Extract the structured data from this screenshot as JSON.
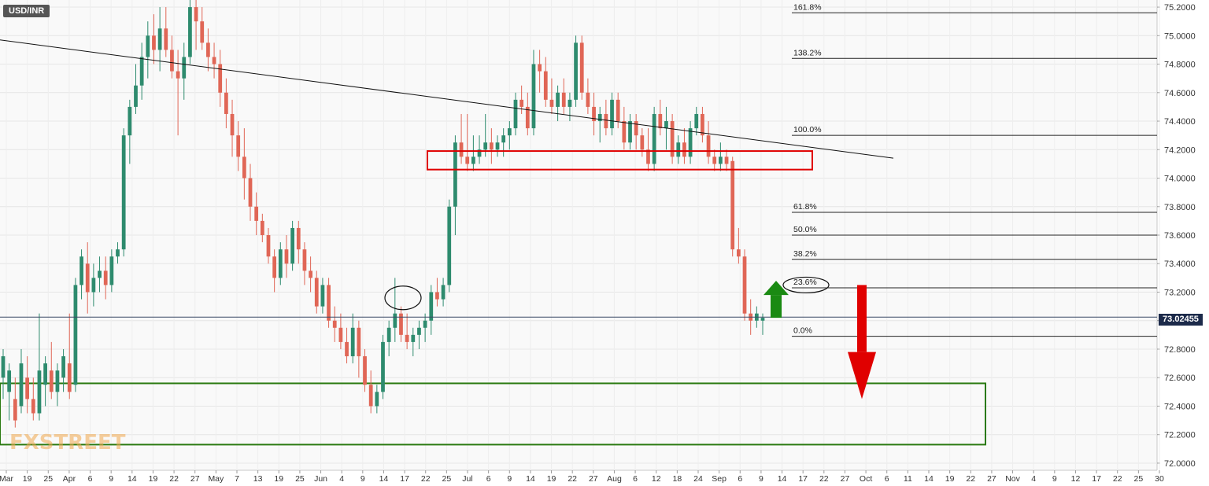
{
  "symbol": "USD/INR",
  "logo_text": "FXSTREET",
  "current_price_label": "73.02455",
  "colors": {
    "bull": "#2e8b6e",
    "bear": "#e06656",
    "fib_line": "#222222",
    "trend_line": "#111111",
    "resistance_box": "#e00000",
    "support_box": "#2a7a10",
    "arrow_up": "#1a8a12",
    "arrow_down": "#e00000",
    "price_line": "#3a4a66"
  },
  "chart_data": {
    "type": "candlestick",
    "y_axis": {
      "ylim": [
        71.95,
        75.25
      ],
      "ticks": [
        "75.2000",
        "75.0000",
        "74.8000",
        "74.6000",
        "74.4000",
        "74.2000",
        "74.0000",
        "73.8000",
        "73.6000",
        "73.4000",
        "73.2000",
        "73.0000",
        "72.8000",
        "72.6000",
        "72.4000",
        "72.2000",
        "72.0000"
      ]
    },
    "x_axis": {
      "ticks": [
        "Mar",
        "19",
        "25",
        "Apr",
        "6",
        "9",
        "14",
        "19",
        "22",
        "27",
        "May",
        "7",
        "13",
        "19",
        "25",
        "Jun",
        "4",
        "9",
        "14",
        "17",
        "22",
        "25",
        "Jul",
        "6",
        "9",
        "14",
        "19",
        "22",
        "27",
        "Aug",
        "6",
        "12",
        "18",
        "24",
        "Sep",
        "6",
        "9",
        "14",
        "17",
        "22",
        "27",
        "Oct",
        "6",
        "11",
        "14",
        "19",
        "22",
        "27",
        "Nov",
        "4",
        "9",
        "12",
        "17",
        "22",
        "25",
        "30"
      ]
    },
    "fibonacci": [
      {
        "label": "161.8%",
        "value": 75.16
      },
      {
        "label": "138.2%",
        "value": 74.84
      },
      {
        "label": "100.0%",
        "value": 74.3
      },
      {
        "label": "61.8%",
        "value": 73.76
      },
      {
        "label": "50.0%",
        "value": 73.6
      },
      {
        "label": "38.2%",
        "value": 73.43
      },
      {
        "label": "23.6%",
        "value": 73.23
      },
      {
        "label": "0.0%",
        "value": 72.89
      }
    ],
    "current_price": 73.02455,
    "candles": [
      {
        "o": 72.6,
        "h": 72.8,
        "l": 72.45,
        "c": 72.75
      },
      {
        "o": 72.5,
        "h": 72.7,
        "l": 72.3,
        "c": 72.65
      },
      {
        "o": 72.45,
        "h": 72.6,
        "l": 72.25,
        "c": 72.3
      },
      {
        "o": 72.4,
        "h": 72.8,
        "l": 72.35,
        "c": 72.7
      },
      {
        "o": 72.6,
        "h": 72.75,
        "l": 72.35,
        "c": 72.45
      },
      {
        "o": 72.45,
        "h": 72.6,
        "l": 72.3,
        "c": 72.35
      },
      {
        "o": 72.35,
        "h": 73.05,
        "l": 72.3,
        "c": 72.65
      },
      {
        "o": 72.55,
        "h": 72.75,
        "l": 72.4,
        "c": 72.7
      },
      {
        "o": 72.65,
        "h": 72.85,
        "l": 72.45,
        "c": 72.5
      },
      {
        "o": 72.5,
        "h": 72.7,
        "l": 72.4,
        "c": 72.65
      },
      {
        "o": 72.6,
        "h": 72.8,
        "l": 72.5,
        "c": 72.75
      },
      {
        "o": 72.7,
        "h": 73.05,
        "l": 72.45,
        "c": 72.5
      },
      {
        "o": 72.55,
        "h": 73.3,
        "l": 72.5,
        "c": 73.25
      },
      {
        "o": 73.25,
        "h": 73.5,
        "l": 73.15,
        "c": 73.45
      },
      {
        "o": 73.4,
        "h": 73.55,
        "l": 73.05,
        "c": 73.2
      },
      {
        "o": 73.2,
        "h": 73.4,
        "l": 73.1,
        "c": 73.3
      },
      {
        "o": 73.3,
        "h": 73.45,
        "l": 73.2,
        "c": 73.35
      },
      {
        "o": 73.35,
        "h": 73.45,
        "l": 73.15,
        "c": 73.25
      },
      {
        "o": 73.25,
        "h": 73.5,
        "l": 73.2,
        "c": 73.45
      },
      {
        "o": 73.45,
        "h": 73.55,
        "l": 73.4,
        "c": 73.5
      },
      {
        "o": 73.5,
        "h": 74.35,
        "l": 73.45,
        "c": 74.3
      },
      {
        "o": 74.3,
        "h": 74.55,
        "l": 74.1,
        "c": 74.5
      },
      {
        "o": 74.5,
        "h": 74.8,
        "l": 74.45,
        "c": 74.65
      },
      {
        "o": 74.65,
        "h": 74.95,
        "l": 74.55,
        "c": 74.85
      },
      {
        "o": 74.85,
        "h": 75.1,
        "l": 74.7,
        "c": 75.0
      },
      {
        "o": 75.0,
        "h": 75.15,
        "l": 74.8,
        "c": 74.9
      },
      {
        "o": 74.9,
        "h": 75.2,
        "l": 74.75,
        "c": 75.05
      },
      {
        "o": 75.05,
        "h": 75.2,
        "l": 74.85,
        "c": 74.9
      },
      {
        "o": 74.9,
        "h": 75.0,
        "l": 74.7,
        "c": 74.75
      },
      {
        "o": 74.75,
        "h": 74.9,
        "l": 74.3,
        "c": 74.7
      },
      {
        "o": 74.7,
        "h": 74.95,
        "l": 74.55,
        "c": 74.85
      },
      {
        "o": 74.85,
        "h": 75.25,
        "l": 74.8,
        "c": 75.2
      },
      {
        "o": 75.2,
        "h": 75.25,
        "l": 74.9,
        "c": 75.1
      },
      {
        "o": 75.1,
        "h": 75.2,
        "l": 74.9,
        "c": 74.95
      },
      {
        "o": 74.95,
        "h": 75.05,
        "l": 74.75,
        "c": 74.85
      },
      {
        "o": 74.85,
        "h": 74.95,
        "l": 74.7,
        "c": 74.8
      },
      {
        "o": 74.8,
        "h": 74.9,
        "l": 74.5,
        "c": 74.6
      },
      {
        "o": 74.6,
        "h": 74.7,
        "l": 74.35,
        "c": 74.45
      },
      {
        "o": 74.45,
        "h": 74.55,
        "l": 74.15,
        "c": 74.3
      },
      {
        "o": 74.3,
        "h": 74.4,
        "l": 74.05,
        "c": 74.15
      },
      {
        "o": 74.15,
        "h": 74.35,
        "l": 73.85,
        "c": 74.0
      },
      {
        "o": 74.0,
        "h": 74.1,
        "l": 73.7,
        "c": 73.8
      },
      {
        "o": 73.8,
        "h": 73.9,
        "l": 73.6,
        "c": 73.7
      },
      {
        "o": 73.7,
        "h": 73.75,
        "l": 73.55,
        "c": 73.6
      },
      {
        "o": 73.6,
        "h": 73.65,
        "l": 73.4,
        "c": 73.45
      },
      {
        "o": 73.45,
        "h": 73.5,
        "l": 73.2,
        "c": 73.3
      },
      {
        "o": 73.3,
        "h": 73.55,
        "l": 73.25,
        "c": 73.5
      },
      {
        "o": 73.5,
        "h": 73.6,
        "l": 73.3,
        "c": 73.4
      },
      {
        "o": 73.4,
        "h": 73.7,
        "l": 73.35,
        "c": 73.65
      },
      {
        "o": 73.65,
        "h": 73.7,
        "l": 73.4,
        "c": 73.5
      },
      {
        "o": 73.5,
        "h": 73.55,
        "l": 73.25,
        "c": 73.35
      },
      {
        "o": 73.35,
        "h": 73.45,
        "l": 73.2,
        "c": 73.3
      },
      {
        "o": 73.3,
        "h": 73.35,
        "l": 73.05,
        "c": 73.1
      },
      {
        "o": 73.1,
        "h": 73.3,
        "l": 73.05,
        "c": 73.25
      },
      {
        "o": 73.25,
        "h": 73.3,
        "l": 72.95,
        "c": 73.0
      },
      {
        "o": 73.0,
        "h": 73.1,
        "l": 72.85,
        "c": 72.95
      },
      {
        "o": 72.95,
        "h": 73.05,
        "l": 72.8,
        "c": 72.85
      },
      {
        "o": 72.85,
        "h": 72.95,
        "l": 72.7,
        "c": 72.75
      },
      {
        "o": 72.75,
        "h": 73.05,
        "l": 72.7,
        "c": 72.95
      },
      {
        "o": 72.95,
        "h": 73.0,
        "l": 72.6,
        "c": 72.75
      },
      {
        "o": 72.75,
        "h": 72.8,
        "l": 72.5,
        "c": 72.55
      },
      {
        "o": 72.55,
        "h": 72.65,
        "l": 72.35,
        "c": 72.4
      },
      {
        "o": 72.4,
        "h": 72.55,
        "l": 72.35,
        "c": 72.5
      },
      {
        "o": 72.5,
        "h": 72.9,
        "l": 72.45,
        "c": 72.85
      },
      {
        "o": 72.85,
        "h": 73.0,
        "l": 72.75,
        "c": 72.95
      },
      {
        "o": 72.95,
        "h": 73.3,
        "l": 72.85,
        "c": 73.05
      },
      {
        "o": 73.05,
        "h": 73.1,
        "l": 72.85,
        "c": 72.9
      },
      {
        "o": 72.9,
        "h": 73.05,
        "l": 72.8,
        "c": 72.85
      },
      {
        "o": 72.85,
        "h": 72.95,
        "l": 72.75,
        "c": 72.9
      },
      {
        "o": 72.9,
        "h": 73.0,
        "l": 72.8,
        "c": 72.95
      },
      {
        "o": 72.95,
        "h": 73.05,
        "l": 72.85,
        "c": 73.0
      },
      {
        "o": 73.0,
        "h": 73.25,
        "l": 72.9,
        "c": 73.2
      },
      {
        "o": 73.2,
        "h": 73.3,
        "l": 73.1,
        "c": 73.15
      },
      {
        "o": 73.15,
        "h": 73.3,
        "l": 73.1,
        "c": 73.25
      },
      {
        "o": 73.25,
        "h": 73.85,
        "l": 73.2,
        "c": 73.8
      },
      {
        "o": 73.8,
        "h": 74.3,
        "l": 73.6,
        "c": 74.25
      },
      {
        "o": 74.25,
        "h": 74.45,
        "l": 74.1,
        "c": 74.15
      },
      {
        "o": 74.15,
        "h": 74.45,
        "l": 74.05,
        "c": 74.1
      },
      {
        "o": 74.1,
        "h": 74.3,
        "l": 74.05,
        "c": 74.15
      },
      {
        "o": 74.15,
        "h": 74.3,
        "l": 74.1,
        "c": 74.2
      },
      {
        "o": 74.2,
        "h": 74.45,
        "l": 74.15,
        "c": 74.25
      },
      {
        "o": 74.25,
        "h": 74.35,
        "l": 74.1,
        "c": 74.2
      },
      {
        "o": 74.2,
        "h": 74.3,
        "l": 74.15,
        "c": 74.25
      },
      {
        "o": 74.25,
        "h": 74.35,
        "l": 74.15,
        "c": 74.3
      },
      {
        "o": 74.3,
        "h": 74.4,
        "l": 74.2,
        "c": 74.35
      },
      {
        "o": 74.35,
        "h": 74.6,
        "l": 74.3,
        "c": 74.55
      },
      {
        "o": 74.55,
        "h": 74.65,
        "l": 74.45,
        "c": 74.5
      },
      {
        "o": 74.5,
        "h": 74.6,
        "l": 74.3,
        "c": 74.35
      },
      {
        "o": 74.35,
        "h": 74.9,
        "l": 74.3,
        "c": 74.8
      },
      {
        "o": 74.8,
        "h": 74.9,
        "l": 74.6,
        "c": 74.75
      },
      {
        "o": 74.75,
        "h": 74.85,
        "l": 74.5,
        "c": 74.55
      },
      {
        "o": 74.55,
        "h": 74.7,
        "l": 74.45,
        "c": 74.5
      },
      {
        "o": 74.5,
        "h": 74.65,
        "l": 74.4,
        "c": 74.6
      },
      {
        "o": 74.6,
        "h": 74.7,
        "l": 74.45,
        "c": 74.5
      },
      {
        "o": 74.5,
        "h": 74.6,
        "l": 74.4,
        "c": 74.55
      },
      {
        "o": 74.55,
        "h": 75.0,
        "l": 74.5,
        "c": 74.95
      },
      {
        "o": 74.95,
        "h": 75.0,
        "l": 74.55,
        "c": 74.6
      },
      {
        "o": 74.6,
        "h": 74.7,
        "l": 74.45,
        "c": 74.5
      },
      {
        "o": 74.5,
        "h": 74.6,
        "l": 74.3,
        "c": 74.4
      },
      {
        "o": 74.4,
        "h": 74.5,
        "l": 74.25,
        "c": 74.45
      },
      {
        "o": 74.45,
        "h": 74.55,
        "l": 74.3,
        "c": 74.35
      },
      {
        "o": 74.35,
        "h": 74.6,
        "l": 74.3,
        "c": 74.55
      },
      {
        "o": 74.55,
        "h": 74.6,
        "l": 74.35,
        "c": 74.4
      },
      {
        "o": 74.4,
        "h": 74.5,
        "l": 74.2,
        "c": 74.25
      },
      {
        "o": 74.25,
        "h": 74.45,
        "l": 74.2,
        "c": 74.4
      },
      {
        "o": 74.4,
        "h": 74.45,
        "l": 74.2,
        "c": 74.3
      },
      {
        "o": 74.3,
        "h": 74.35,
        "l": 74.15,
        "c": 74.2
      },
      {
        "o": 74.2,
        "h": 74.35,
        "l": 74.05,
        "c": 74.1
      },
      {
        "o": 74.1,
        "h": 74.5,
        "l": 74.05,
        "c": 74.45
      },
      {
        "o": 74.45,
        "h": 74.55,
        "l": 74.3,
        "c": 74.35
      },
      {
        "o": 74.35,
        "h": 74.5,
        "l": 74.2,
        "c": 74.4
      },
      {
        "o": 74.4,
        "h": 74.45,
        "l": 74.1,
        "c": 74.15
      },
      {
        "o": 74.15,
        "h": 74.3,
        "l": 74.1,
        "c": 74.25
      },
      {
        "o": 74.25,
        "h": 74.35,
        "l": 74.1,
        "c": 74.15
      },
      {
        "o": 74.15,
        "h": 74.4,
        "l": 74.1,
        "c": 74.35
      },
      {
        "o": 74.35,
        "h": 74.5,
        "l": 74.3,
        "c": 74.45
      },
      {
        "o": 74.45,
        "h": 74.5,
        "l": 74.25,
        "c": 74.3
      },
      {
        "o": 74.3,
        "h": 74.4,
        "l": 74.1,
        "c": 74.15
      },
      {
        "o": 74.15,
        "h": 74.2,
        "l": 74.05,
        "c": 74.1
      },
      {
        "o": 74.1,
        "h": 74.25,
        "l": 74.05,
        "c": 74.15
      },
      {
        "o": 74.15,
        "h": 74.2,
        "l": 74.05,
        "c": 74.1
      },
      {
        "o": 74.12,
        "h": 74.15,
        "l": 73.45,
        "c": 73.5
      },
      {
        "o": 73.5,
        "h": 73.65,
        "l": 73.4,
        "c": 73.45
      },
      {
        "o": 73.45,
        "h": 73.5,
        "l": 73.0,
        "c": 73.05
      },
      {
        "o": 73.05,
        "h": 73.15,
        "l": 72.9,
        "c": 73.0
      },
      {
        "o": 73.0,
        "h": 73.1,
        "l": 72.95,
        "c": 73.05
      },
      {
        "o": 73.0,
        "h": 73.05,
        "l": 72.9,
        "c": 73.02
      }
    ]
  }
}
